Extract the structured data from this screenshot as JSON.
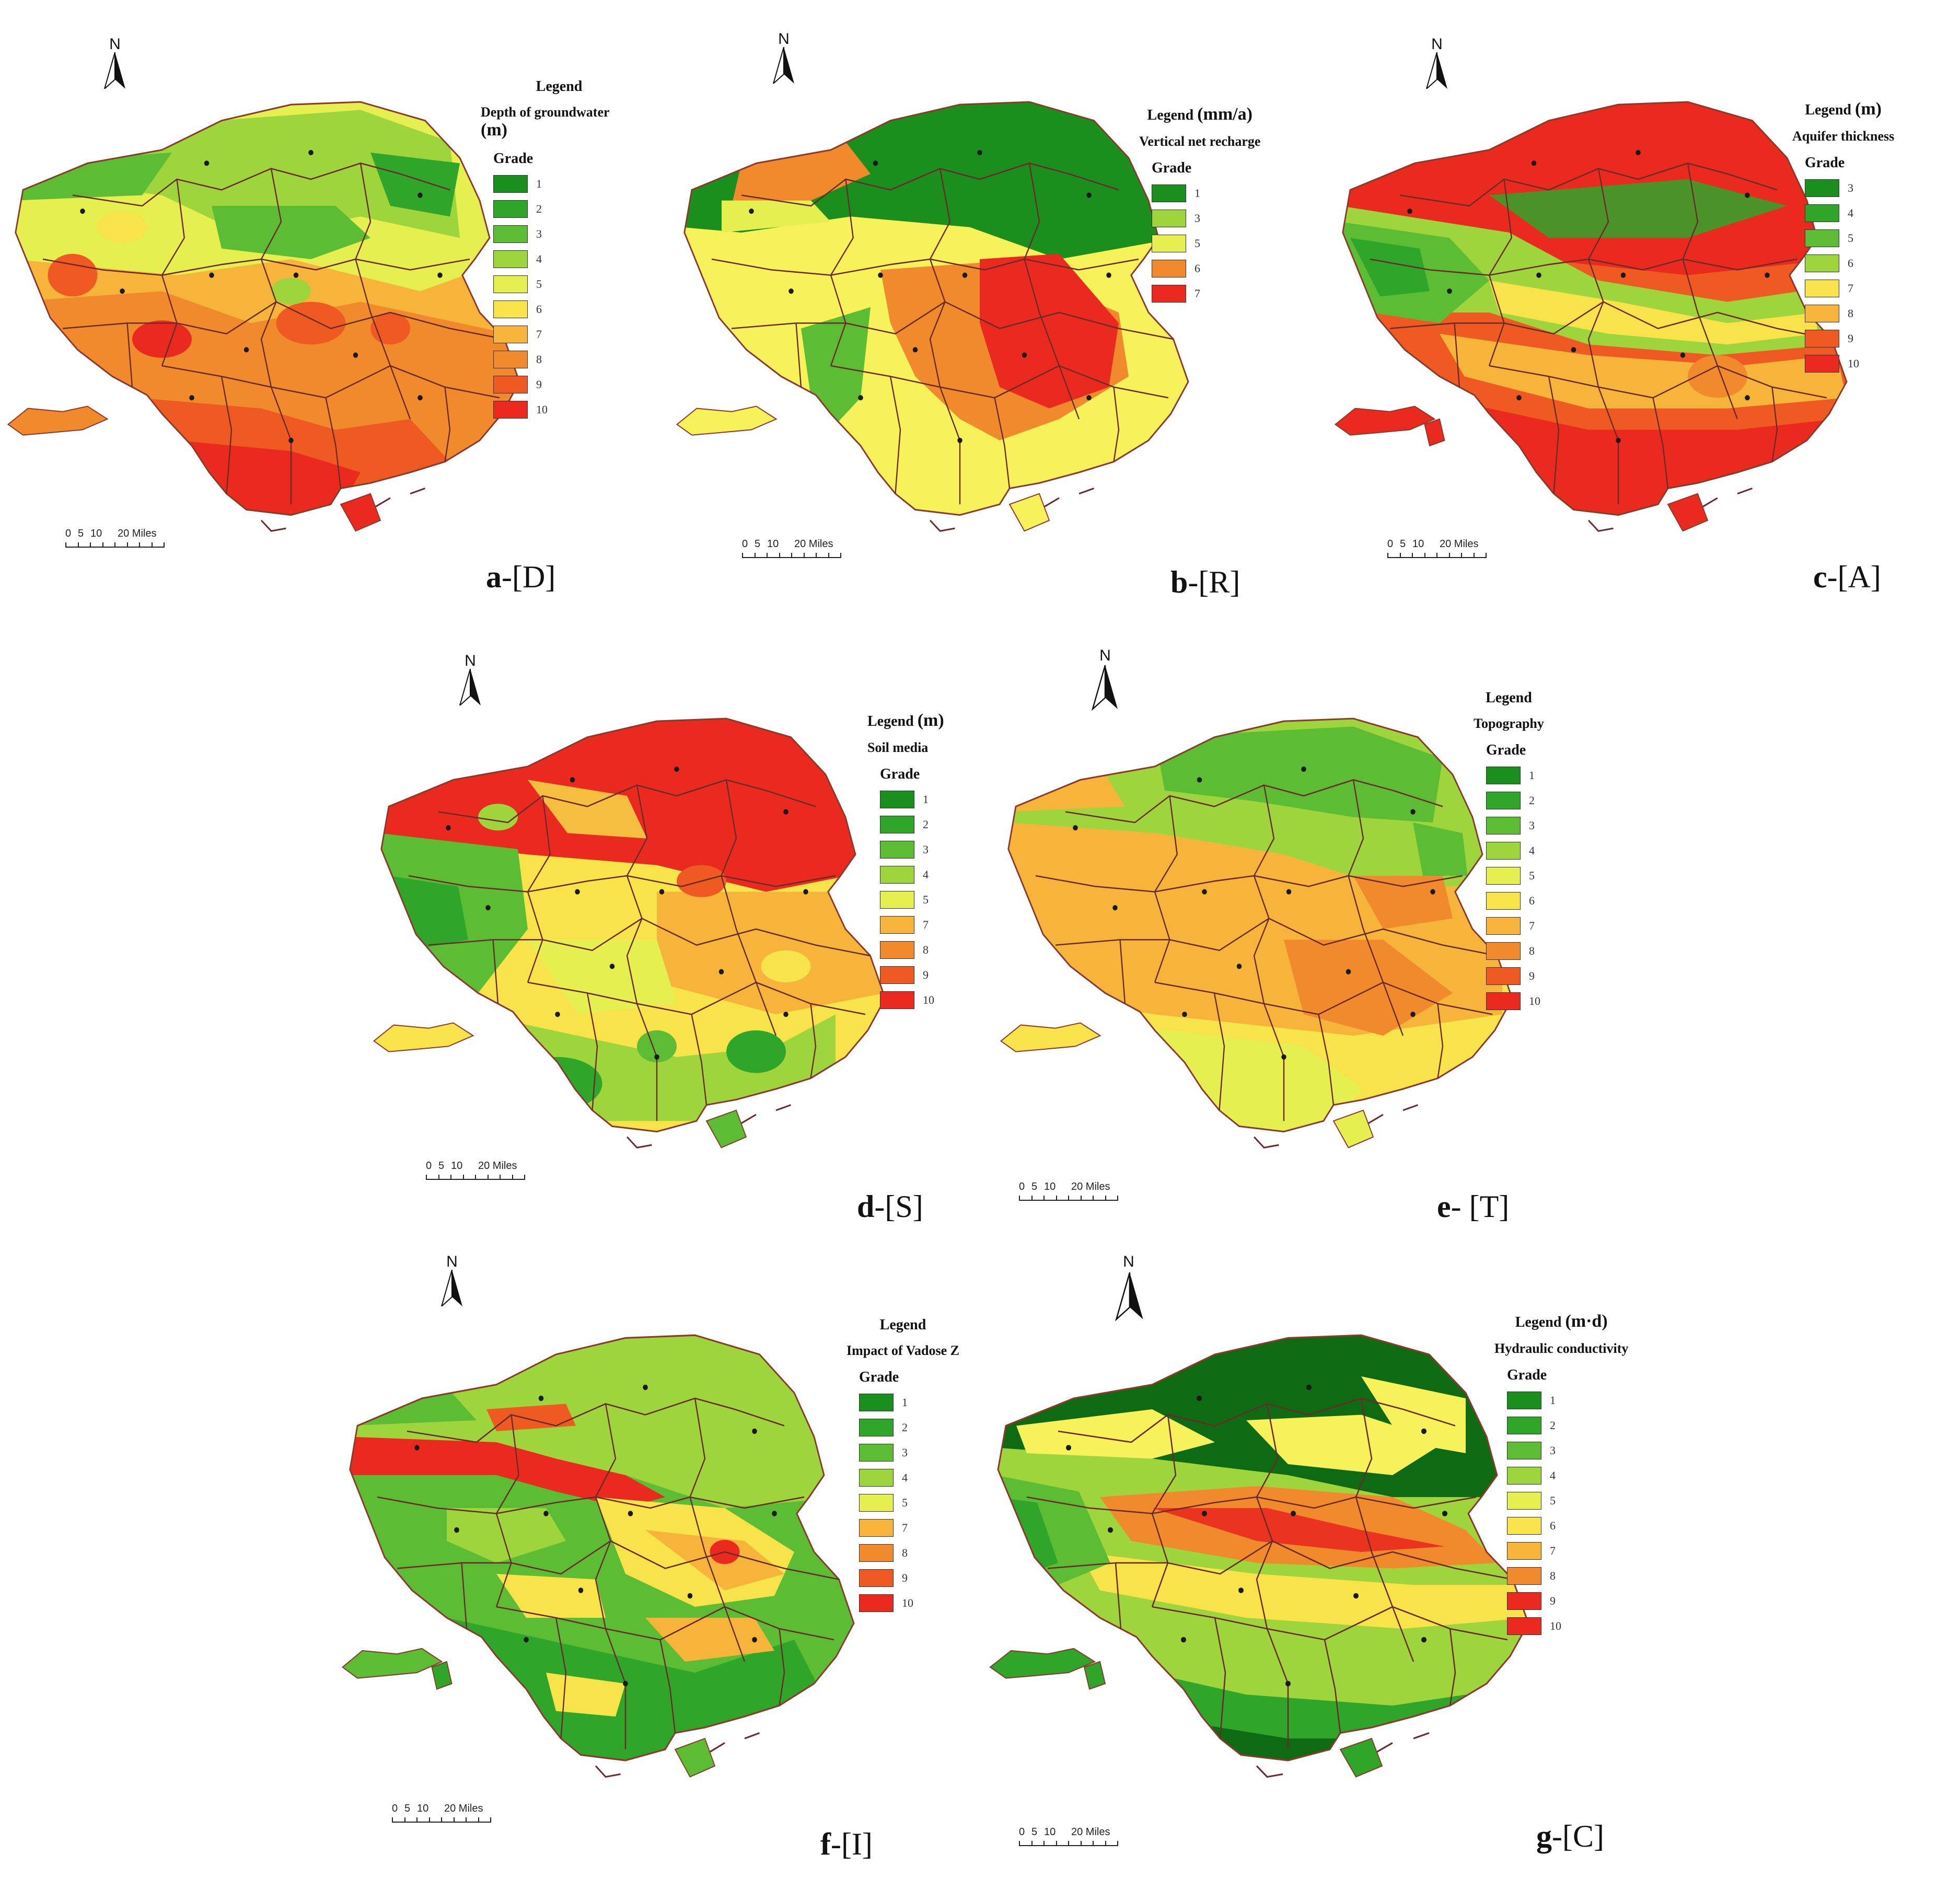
{
  "colors": {
    "g1": "#1a8f1e",
    "g2": "#2fa52a",
    "g3": "#5cbd34",
    "g4": "#9ed43c",
    "g5": "#e6ef50",
    "g6": "#f8e34a",
    "g7": "#f6b43a",
    "g8": "#f08a2c",
    "g9": "#ee5a22",
    "g10": "#ea2a1e",
    "dark_green": "#0e6b14"
  },
  "north_letter": "N",
  "scale_bar": {
    "n0": "0",
    "n5": "5",
    "n10": "10",
    "n20": "20 Miles"
  },
  "panels": [
    {
      "id": "a",
      "letter": "a",
      "code": "-[D]",
      "legend": {
        "title": "Legend",
        "unit": "(m)",
        "name": "Depth of groundwater",
        "grade_label": "Grade",
        "rows": [
          {
            "value": "1",
            "color": "g1"
          },
          {
            "value": "2",
            "color": "g2"
          },
          {
            "value": "3",
            "color": "g3"
          },
          {
            "value": "4",
            "color": "g4"
          },
          {
            "value": "5",
            "color": "g5"
          },
          {
            "value": "6",
            "color": "g6"
          },
          {
            "value": "7",
            "color": "g7"
          },
          {
            "value": "8",
            "color": "g8"
          },
          {
            "value": "9",
            "color": "g9"
          },
          {
            "value": "10",
            "color": "g10"
          }
        ]
      }
    },
    {
      "id": "b",
      "letter": "b",
      "code": "-[R]",
      "legend": {
        "title": "Legend",
        "unit": "(mm/a)",
        "name": "Vertical net recharge",
        "grade_label": "Grade",
        "rows": [
          {
            "value": "1",
            "color": "g1"
          },
          {
            "value": "3",
            "color": "g4"
          },
          {
            "value": "5",
            "color": "g5"
          },
          {
            "value": "6",
            "color": "g8"
          },
          {
            "value": "7",
            "color": "g10"
          }
        ]
      }
    },
    {
      "id": "c",
      "letter": "c",
      "code": "-[A]",
      "legend": {
        "title": "Legend",
        "unit": "(m)",
        "name": "Aquifer thickness",
        "grade_label": "Grade",
        "rows": [
          {
            "value": "3",
            "color": "g1"
          },
          {
            "value": "4",
            "color": "g2"
          },
          {
            "value": "5",
            "color": "g3"
          },
          {
            "value": "6",
            "color": "g4"
          },
          {
            "value": "7",
            "color": "g6"
          },
          {
            "value": "8",
            "color": "g7"
          },
          {
            "value": "9",
            "color": "g9"
          },
          {
            "value": "10",
            "color": "g10"
          }
        ]
      }
    },
    {
      "id": "d",
      "letter": "d",
      "code": "-[S]",
      "legend": {
        "title": "Legend",
        "unit": "(m)",
        "name": "Soil media",
        "grade_label": "Grade",
        "rows": [
          {
            "value": "1",
            "color": "g1"
          },
          {
            "value": "2",
            "color": "g2"
          },
          {
            "value": "3",
            "color": "g3"
          },
          {
            "value": "4",
            "color": "g4"
          },
          {
            "value": "5",
            "color": "g5"
          },
          {
            "value": "7",
            "color": "g7"
          },
          {
            "value": "8",
            "color": "g8"
          },
          {
            "value": "9",
            "color": "g9"
          },
          {
            "value": "10",
            "color": "g10"
          }
        ]
      }
    },
    {
      "id": "e",
      "letter": "e",
      "code": "- [T]",
      "legend": {
        "title": "Legend",
        "unit": "",
        "name": "Topography",
        "grade_label": "Grade",
        "rows": [
          {
            "value": "1",
            "color": "g1"
          },
          {
            "value": "2",
            "color": "g2"
          },
          {
            "value": "3",
            "color": "g3"
          },
          {
            "value": "4",
            "color": "g4"
          },
          {
            "value": "5",
            "color": "g5"
          },
          {
            "value": "6",
            "color": "g6"
          },
          {
            "value": "7",
            "color": "g7"
          },
          {
            "value": "8",
            "color": "g8"
          },
          {
            "value": "9",
            "color": "g9"
          },
          {
            "value": "10",
            "color": "g10"
          }
        ]
      }
    },
    {
      "id": "f",
      "letter": "f",
      "code": "-[I]",
      "legend": {
        "title": "Legend",
        "unit": "",
        "name": "Impact of Vadose Z",
        "grade_label": "Grade",
        "rows": [
          {
            "value": "1",
            "color": "g1"
          },
          {
            "value": "2",
            "color": "g2"
          },
          {
            "value": "3",
            "color": "g3"
          },
          {
            "value": "4",
            "color": "g4"
          },
          {
            "value": "5",
            "color": "g5"
          },
          {
            "value": "7",
            "color": "g7"
          },
          {
            "value": "8",
            "color": "g8"
          },
          {
            "value": "9",
            "color": "g9"
          },
          {
            "value": "10",
            "color": "g10"
          }
        ]
      }
    },
    {
      "id": "g",
      "letter": "g",
      "code": "-[C]",
      "legend": {
        "title": "Legend",
        "unit": "(m·d)",
        "name": "Hydraulic conductivity",
        "grade_label": "Grade",
        "rows": [
          {
            "value": "1",
            "color": "g1"
          },
          {
            "value": "2",
            "color": "g2"
          },
          {
            "value": "3",
            "color": "g3"
          },
          {
            "value": "4",
            "color": "g4"
          },
          {
            "value": "5",
            "color": "g5"
          },
          {
            "value": "6",
            "color": "g6"
          },
          {
            "value": "7",
            "color": "g7"
          },
          {
            "value": "8",
            "color": "g8"
          },
          {
            "value": "9",
            "color": "g10"
          },
          {
            "value": "10",
            "color": "g10"
          }
        ]
      }
    }
  ]
}
